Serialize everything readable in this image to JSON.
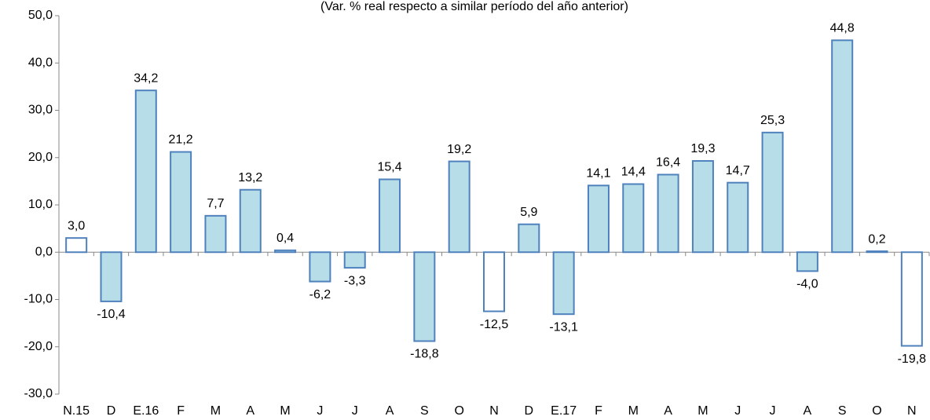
{
  "chart_data": {
    "type": "bar",
    "subtitle": "(Var. % real respecto a similar período del año anterior)",
    "categories": [
      "N.15",
      "D",
      "E.16",
      "F",
      "M",
      "A",
      "M",
      "J",
      "J",
      "A",
      "S",
      "O",
      "N",
      "D",
      "E.17",
      "F",
      "M",
      "A",
      "M",
      "J",
      "J",
      "A",
      "S",
      "O",
      "N"
    ],
    "values": [
      3.0,
      -10.4,
      34.2,
      21.2,
      7.7,
      13.2,
      0.4,
      -6.2,
      -3.3,
      15.4,
      -18.8,
      19.2,
      -12.5,
      5.9,
      -13.1,
      14.1,
      14.4,
      16.4,
      19.3,
      14.7,
      25.3,
      -4.0,
      44.8,
      0.2,
      -19.8
    ],
    "value_labels": [
      "3,0",
      "-10,4",
      "34,2",
      "21,2",
      "7,7",
      "13,2",
      "0,4",
      "-6,2",
      "-3,3",
      "15,4",
      "-18,8",
      "19,2",
      "-12,5",
      "5,9",
      "-13,1",
      "14,1",
      "14,4",
      "16,4",
      "19,3",
      "14,7",
      "25,3",
      "-4,0",
      "44,8",
      "0,2",
      "-19,8"
    ],
    "colors": [
      "#ffffff",
      "#b7dee8",
      "#b7dee8",
      "#b7dee8",
      "#b7dee8",
      "#b7dee8",
      "#b7dee8",
      "#b7dee8",
      "#b7dee8",
      "#b7dee8",
      "#b7dee8",
      "#b7dee8",
      "#ffffff",
      "#b7dee8",
      "#b7dee8",
      "#b7dee8",
      "#b7dee8",
      "#b7dee8",
      "#b7dee8",
      "#b7dee8",
      "#b7dee8",
      "#b7dee8",
      "#b7dee8",
      "#b7dee8",
      "#ffffff"
    ],
    "edge_color": "#4f81bd",
    "ylim": [
      -30,
      50
    ],
    "yticks": [
      {
        "value": -30,
        "label": "-30,0"
      },
      {
        "value": -20,
        "label": "-20,0"
      },
      {
        "value": -10,
        "label": "-10,0"
      },
      {
        "value": 0,
        "label": "0,0"
      },
      {
        "value": 10,
        "label": "10,0"
      },
      {
        "value": 20,
        "label": "20,0"
      },
      {
        "value": 30,
        "label": "30,0"
      },
      {
        "value": 40,
        "label": "40,0"
      },
      {
        "value": 50,
        "label": "50,0"
      }
    ],
    "grid": false
  }
}
